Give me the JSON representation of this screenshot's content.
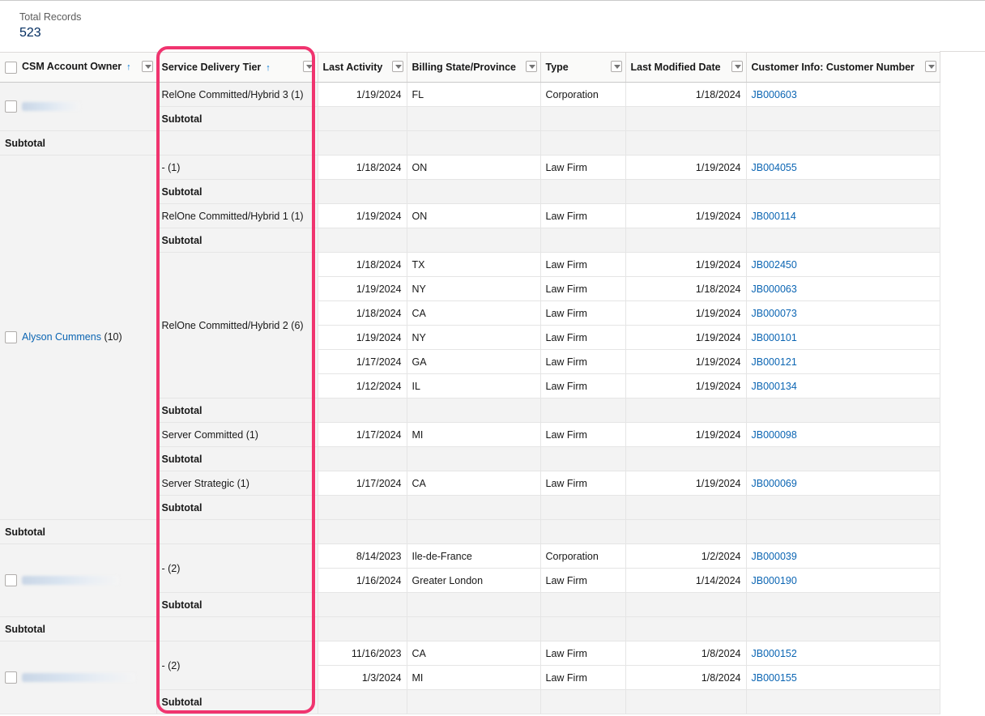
{
  "summary": {
    "label": "Total Records",
    "value": "523"
  },
  "columns": [
    {
      "label": "CSM Account Owner",
      "sorted": true
    },
    {
      "label": "Service Delivery Tier",
      "sorted": true
    },
    {
      "label": "Last Activity",
      "sorted": false
    },
    {
      "label": "Billing State/Province",
      "sorted": false
    },
    {
      "label": "Type",
      "sorted": false
    },
    {
      "label": "Last Modified Date",
      "sorted": false
    },
    {
      "label": "Customer Info: Customer Number",
      "sorted": false
    }
  ],
  "icons": {
    "sort": "arrow-up-icon",
    "filter": "chevron-down-icon",
    "select": "checkbox-icon"
  },
  "subtotal_label": "Subtotal",
  "owners": [
    {
      "name": "",
      "count": "",
      "redacted": true,
      "redacted_width": 72,
      "tiers": [
        {
          "label": "RelOne Committed/Hybrid 3 (1)",
          "rows": [
            {
              "activity": "1/19/2024",
              "state": "FL",
              "type": "Corporation",
              "modified": "1/18/2024",
              "customer": "JB000603"
            }
          ]
        }
      ]
    },
    {
      "name": "Alyson Cummens",
      "count": "(10)",
      "redacted": false,
      "tiers": [
        {
          "label": "- (1)",
          "rows": [
            {
              "activity": "1/18/2024",
              "state": "ON",
              "type": "Law Firm",
              "modified": "1/19/2024",
              "customer": "JB004055"
            }
          ]
        },
        {
          "label": "RelOne Committed/Hybrid 1 (1)",
          "rows": [
            {
              "activity": "1/19/2024",
              "state": "ON",
              "type": "Law Firm",
              "modified": "1/19/2024",
              "customer": "JB000114"
            }
          ]
        },
        {
          "label": "RelOne Committed/Hybrid 2 (6)",
          "rows": [
            {
              "activity": "1/18/2024",
              "state": "TX",
              "type": "Law Firm",
              "modified": "1/19/2024",
              "customer": "JB002450"
            },
            {
              "activity": "1/19/2024",
              "state": "NY",
              "type": "Law Firm",
              "modified": "1/18/2024",
              "customer": "JB000063"
            },
            {
              "activity": "1/18/2024",
              "state": "CA",
              "type": "Law Firm",
              "modified": "1/19/2024",
              "customer": "JB000073"
            },
            {
              "activity": "1/19/2024",
              "state": "NY",
              "type": "Law Firm",
              "modified": "1/19/2024",
              "customer": "JB000101"
            },
            {
              "activity": "1/17/2024",
              "state": "GA",
              "type": "Law Firm",
              "modified": "1/19/2024",
              "customer": "JB000121"
            },
            {
              "activity": "1/12/2024",
              "state": "IL",
              "type": "Law Firm",
              "modified": "1/19/2024",
              "customer": "JB000134"
            }
          ]
        },
        {
          "label": "Server Committed (1)",
          "rows": [
            {
              "activity": "1/17/2024",
              "state": "MI",
              "type": "Law Firm",
              "modified": "1/19/2024",
              "customer": "JB000098"
            }
          ]
        },
        {
          "label": "Server Strategic (1)",
          "rows": [
            {
              "activity": "1/17/2024",
              "state": "CA",
              "type": "Law Firm",
              "modified": "1/19/2024",
              "customer": "JB000069"
            }
          ]
        }
      ]
    },
    {
      "name": "",
      "count": "",
      "redacted": true,
      "redacted_width": 120,
      "tiers": [
        {
          "label": "- (2)",
          "rows": [
            {
              "activity": "8/14/2023",
              "state": "Ile-de-France",
              "type": "Corporation",
              "modified": "1/2/2024",
              "customer": "JB000039"
            },
            {
              "activity": "1/16/2024",
              "state": "Greater London",
              "type": "Law Firm",
              "modified": "1/14/2024",
              "customer": "JB000190"
            }
          ]
        }
      ]
    },
    {
      "name": "",
      "count": "",
      "redacted": true,
      "redacted_width": 140,
      "tiers": [
        {
          "label": "- (2)",
          "rows": [
            {
              "activity": "11/16/2023",
              "state": "CA",
              "type": "Law Firm",
              "modified": "1/8/2024",
              "customer": "JB000152"
            },
            {
              "activity": "1/3/2024",
              "state": "MI",
              "type": "Law Firm",
              "modified": "1/8/2024",
              "customer": "JB000155"
            }
          ]
        }
      ],
      "truncated": true
    }
  ],
  "colors": {
    "highlight": "#f0346f",
    "link": "#0b65b3",
    "subtotal_bg": "#f3f3f3"
  }
}
